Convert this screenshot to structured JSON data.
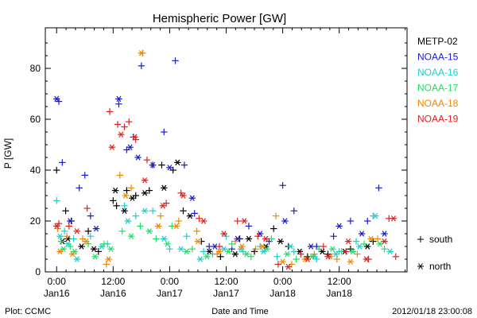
{
  "chart_data": {
    "type": "scatter",
    "title": "Hemispheric Power [GW]",
    "ylabel": "P [GW]",
    "xlabel": "Date and Time",
    "ylim": [
      0,
      95
    ],
    "xlim": [
      -0.1,
      2.1
    ],
    "x_unit": "days since 2012-01-16 00:00",
    "y_ticks": [
      0,
      20,
      40,
      60,
      80
    ],
    "x_ticks": [
      {
        "x": 0.0,
        "time": "0:00",
        "date": "Jan16"
      },
      {
        "x": 0.5,
        "time": "12:00",
        "date": "Jan16"
      },
      {
        "x": 1.0,
        "time": "0:00",
        "date": "Jan17"
      },
      {
        "x": 1.5,
        "time": "12:00",
        "date": "Jan17"
      },
      {
        "x": 2.0,
        "time": "0:00",
        "date": "Jan18"
      },
      {
        "x": 2.5,
        "time": "12:00",
        "date": "Jan18"
      }
    ],
    "marker_legend": [
      {
        "symbol": "+",
        "label": "south"
      },
      {
        "symbol": "*",
        "label": "north"
      }
    ],
    "series": [
      {
        "name": "METP-02",
        "color": "#000000",
        "south": [
          [
            0.0,
            40
          ],
          [
            0.08,
            24
          ],
          [
            0.13,
            20
          ],
          [
            0.28,
            16
          ],
          [
            0.37,
            8
          ],
          [
            0.5,
            28
          ],
          [
            0.53,
            26
          ],
          [
            0.62,
            32
          ],
          [
            0.7,
            30
          ],
          [
            0.82,
            32
          ],
          [
            0.93,
            42
          ],
          [
            1.03,
            40
          ],
          [
            1.12,
            24
          ],
          [
            1.28,
            12
          ],
          [
            1.45,
            6
          ],
          [
            1.62,
            13
          ],
          [
            1.75,
            8
          ],
          [
            1.92,
            17
          ],
          [
            2.05,
            10
          ],
          [
            2.22,
            6
          ],
          [
            2.4,
            7
          ],
          [
            2.6,
            9
          ],
          [
            2.8,
            12
          ]
        ],
        "north": [
          [
            0.05,
            12
          ],
          [
            0.1,
            13
          ],
          [
            0.22,
            10
          ],
          [
            0.33,
            9
          ],
          [
            0.52,
            32
          ],
          [
            0.6,
            24
          ],
          [
            0.67,
            29
          ],
          [
            0.78,
            31
          ],
          [
            0.95,
            33
          ],
          [
            1.07,
            43
          ],
          [
            1.18,
            22
          ],
          [
            1.35,
            8
          ],
          [
            1.58,
            7
          ],
          [
            1.7,
            13
          ],
          [
            1.85,
            10
          ],
          [
            1.98,
            12
          ],
          [
            2.15,
            8
          ],
          [
            2.35,
            8
          ],
          [
            2.55,
            8
          ],
          [
            2.75,
            10
          ]
        ]
      },
      {
        "name": "NOAA-15",
        "color": "#1a1acc",
        "south": [
          [
            0.02,
            67
          ],
          [
            0.05,
            43
          ],
          [
            0.2,
            33
          ],
          [
            0.25,
            38
          ],
          [
            0.3,
            22
          ],
          [
            0.55,
            66
          ],
          [
            0.62,
            48
          ],
          [
            0.68,
            53
          ],
          [
            0.75,
            81
          ],
          [
            0.85,
            42
          ],
          [
            0.95,
            55
          ],
          [
            1.05,
            83
          ],
          [
            1.13,
            42
          ],
          [
            1.22,
            23
          ],
          [
            1.35,
            10
          ],
          [
            1.55,
            9
          ],
          [
            1.7,
            18
          ],
          [
            1.88,
            12
          ],
          [
            2.0,
            34
          ],
          [
            2.1,
            24
          ],
          [
            2.3,
            10
          ],
          [
            2.45,
            14
          ],
          [
            2.6,
            20
          ],
          [
            2.75,
            20
          ],
          [
            2.85,
            33
          ]
        ],
        "north": [
          [
            0.0,
            68
          ],
          [
            0.12,
            20
          ],
          [
            0.35,
            17
          ],
          [
            0.55,
            68
          ],
          [
            0.65,
            49
          ],
          [
            0.72,
            45
          ],
          [
            0.85,
            42
          ],
          [
            1.0,
            41
          ],
          [
            1.2,
            29
          ],
          [
            1.4,
            10
          ],
          [
            1.6,
            13
          ],
          [
            1.8,
            15
          ],
          [
            2.02,
            20
          ],
          [
            2.25,
            10
          ],
          [
            2.5,
            18
          ],
          [
            2.7,
            15
          ],
          [
            2.9,
            15
          ]
        ]
      },
      {
        "name": "NOAA-16",
        "color": "#22cccc",
        "south": [
          [
            0.0,
            28
          ],
          [
            0.07,
            16
          ],
          [
            0.15,
            13
          ],
          [
            0.3,
            14
          ],
          [
            0.45,
            11
          ],
          [
            0.6,
            26
          ],
          [
            0.7,
            22
          ],
          [
            0.85,
            24
          ],
          [
            1.0,
            9
          ],
          [
            1.15,
            14
          ],
          [
            1.3,
            8
          ],
          [
            1.5,
            14
          ],
          [
            1.65,
            8
          ],
          [
            1.8,
            10
          ],
          [
            1.95,
            6
          ],
          [
            2.1,
            8
          ],
          [
            2.3,
            5
          ],
          [
            2.5,
            8
          ],
          [
            2.65,
            12
          ],
          [
            2.8,
            22
          ]
        ],
        "north": [
          [
            0.03,
            14
          ],
          [
            0.1,
            11
          ],
          [
            0.18,
            5
          ],
          [
            0.4,
            10
          ],
          [
            0.63,
            20
          ],
          [
            0.78,
            24
          ],
          [
            0.95,
            13
          ],
          [
            1.1,
            9
          ],
          [
            1.27,
            5
          ],
          [
            1.48,
            9
          ],
          [
            1.63,
            9
          ],
          [
            1.83,
            8
          ],
          [
            2.07,
            10
          ],
          [
            2.28,
            6
          ],
          [
            2.47,
            7
          ],
          [
            2.68,
            10
          ],
          [
            2.82,
            22
          ],
          [
            2.95,
            8
          ]
        ]
      },
      {
        "name": "NOAA-17",
        "color": "#22dd66",
        "south": [
          [
            0.04,
            12
          ],
          [
            0.12,
            10
          ],
          [
            0.28,
            11
          ],
          [
            0.42,
            11
          ],
          [
            0.58,
            16
          ],
          [
            0.74,
            18
          ],
          [
            0.88,
            13
          ],
          [
            1.02,
            18
          ],
          [
            1.2,
            9
          ],
          [
            1.38,
            7
          ],
          [
            1.55,
            11
          ],
          [
            1.72,
            6
          ],
          [
            1.9,
            13
          ],
          [
            2.12,
            5
          ],
          [
            2.32,
            9
          ],
          [
            2.52,
            8
          ],
          [
            2.72,
            11
          ],
          [
            2.9,
            9
          ]
        ],
        "north": [
          [
            0.06,
            9
          ],
          [
            0.16,
            8
          ],
          [
            0.34,
            6
          ],
          [
            0.48,
            9
          ],
          [
            0.66,
            14
          ],
          [
            0.82,
            16
          ],
          [
            0.98,
            11
          ],
          [
            1.15,
            8
          ],
          [
            1.33,
            6
          ],
          [
            1.52,
            8
          ],
          [
            1.68,
            7
          ],
          [
            1.86,
            9
          ],
          [
            2.04,
            7
          ],
          [
            2.26,
            6
          ],
          [
            2.44,
            9
          ],
          [
            2.62,
            8
          ],
          [
            2.86,
            11
          ]
        ]
      },
      {
        "name": "NOAA-18",
        "color": "#ee8800",
        "south": [
          [
            0.01,
            17
          ],
          [
            0.09,
            14
          ],
          [
            0.23,
            13
          ],
          [
            0.44,
            3
          ],
          [
            0.56,
            38
          ],
          [
            0.66,
            33
          ],
          [
            0.76,
            86
          ],
          [
            0.92,
            22
          ],
          [
            1.08,
            20
          ],
          [
            1.24,
            16
          ],
          [
            1.42,
            7
          ],
          [
            1.58,
            12
          ],
          [
            1.76,
            9
          ],
          [
            1.94,
            22
          ],
          [
            2.08,
            3
          ],
          [
            2.28,
            7
          ],
          [
            2.48,
            5
          ],
          [
            2.66,
            7
          ],
          [
            2.84,
            13
          ]
        ],
        "north": [
          [
            0.03,
            8
          ],
          [
            0.14,
            7
          ],
          [
            0.26,
            12
          ],
          [
            0.46,
            5
          ],
          [
            0.61,
            30
          ],
          [
            0.75,
            86
          ],
          [
            0.9,
            18
          ],
          [
            1.06,
            18
          ],
          [
            1.25,
            12
          ],
          [
            1.44,
            8
          ],
          [
            1.64,
            10
          ],
          [
            1.82,
            10
          ],
          [
            2.0,
            4
          ],
          [
            2.2,
            5
          ],
          [
            2.42,
            6
          ],
          [
            2.6,
            4
          ],
          [
            2.78,
            13
          ]
        ]
      },
      {
        "name": "NOAA-19",
        "color": "#dd2222",
        "south": [
          [
            0.02,
            19
          ],
          [
            0.11,
            18
          ],
          [
            0.27,
            25
          ],
          [
            0.47,
            63
          ],
          [
            0.54,
            58
          ],
          [
            0.6,
            57
          ],
          [
            0.64,
            59
          ],
          [
            0.7,
            52
          ],
          [
            0.8,
            44
          ],
          [
            0.97,
            27
          ],
          [
            1.1,
            31
          ],
          [
            1.26,
            21
          ],
          [
            1.44,
            10
          ],
          [
            1.6,
            20
          ],
          [
            1.78,
            14
          ],
          [
            1.96,
            3
          ],
          [
            2.16,
            7
          ],
          [
            2.36,
            10
          ],
          [
            2.56,
            8
          ],
          [
            2.76,
            5
          ],
          [
            2.94,
            21
          ],
          [
            3.0,
            6
          ]
        ],
        "north": [
          [
            0.0,
            18
          ],
          [
            0.18,
            16
          ],
          [
            0.49,
            49
          ],
          [
            0.57,
            54
          ],
          [
            0.69,
            53
          ],
          [
            0.78,
            36
          ],
          [
            0.94,
            26
          ],
          [
            1.12,
            30
          ],
          [
            1.3,
            20
          ],
          [
            1.48,
            15
          ],
          [
            1.66,
            20
          ],
          [
            1.85,
            13
          ],
          [
            2.05,
            2
          ],
          [
            2.22,
            5
          ],
          [
            2.4,
            6
          ],
          [
            2.58,
            12
          ],
          [
            2.74,
            5
          ],
          [
            2.9,
            12
          ],
          [
            2.98,
            21
          ]
        ]
      }
    ]
  },
  "footer": {
    "plot_label": "Plot: CCMC",
    "xlabel": "Date and Time",
    "timestamp": "2012/01/18 23:00:08"
  }
}
